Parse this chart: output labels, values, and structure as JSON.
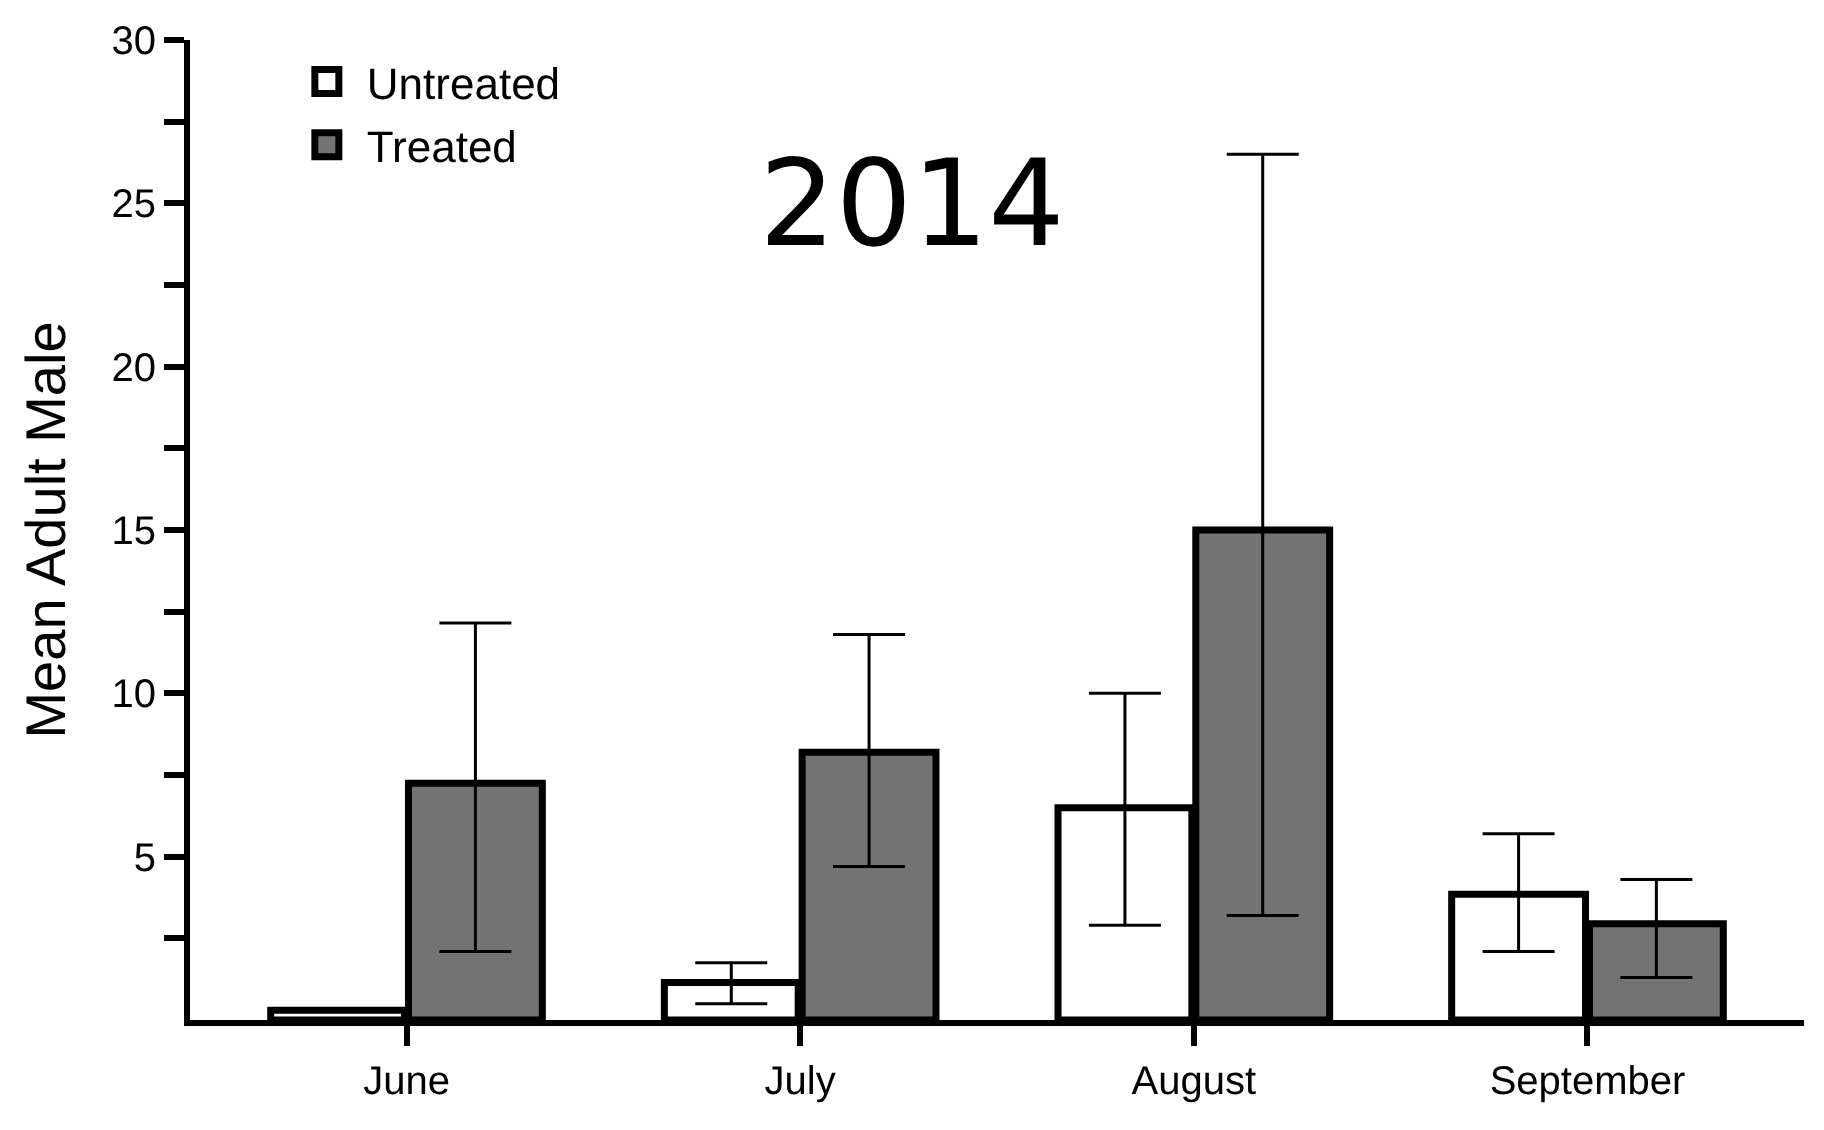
{
  "chart_data": {
    "type": "bar",
    "title": "2014",
    "ylabel": "Mean Adult Male",
    "categories": [
      "June",
      "July",
      "August",
      "September"
    ],
    "series": [
      {
        "name": "Untreated",
        "color": "#ffffff",
        "values": [
          0.3,
          1.15,
          6.5,
          3.85
        ],
        "errors": [
          null,
          [
            0.5,
            1.75
          ],
          [
            2.9,
            10.0
          ],
          [
            2.1,
            5.7
          ]
        ]
      },
      {
        "name": "Treated",
        "color": "#737373",
        "values": [
          7.25,
          8.2,
          15.0,
          2.95
        ],
        "errors": [
          [
            2.1,
            12.15
          ],
          [
            4.7,
            11.8
          ],
          [
            3.2,
            26.5
          ],
          [
            1.3,
            4.3
          ]
        ]
      }
    ],
    "ylim": [
      0,
      30
    ],
    "yticks": [
      {
        "value": 2.5,
        "label": null
      },
      5,
      {
        "value": 7.5,
        "label": null
      },
      10,
      {
        "value": 12.5,
        "label": null
      },
      15,
      {
        "value": 17.5,
        "label": null
      },
      20,
      {
        "value": 22.5,
        "label": null
      },
      25,
      {
        "value": 27.5,
        "label": null
      },
      30
    ],
    "legend": "top left"
  }
}
